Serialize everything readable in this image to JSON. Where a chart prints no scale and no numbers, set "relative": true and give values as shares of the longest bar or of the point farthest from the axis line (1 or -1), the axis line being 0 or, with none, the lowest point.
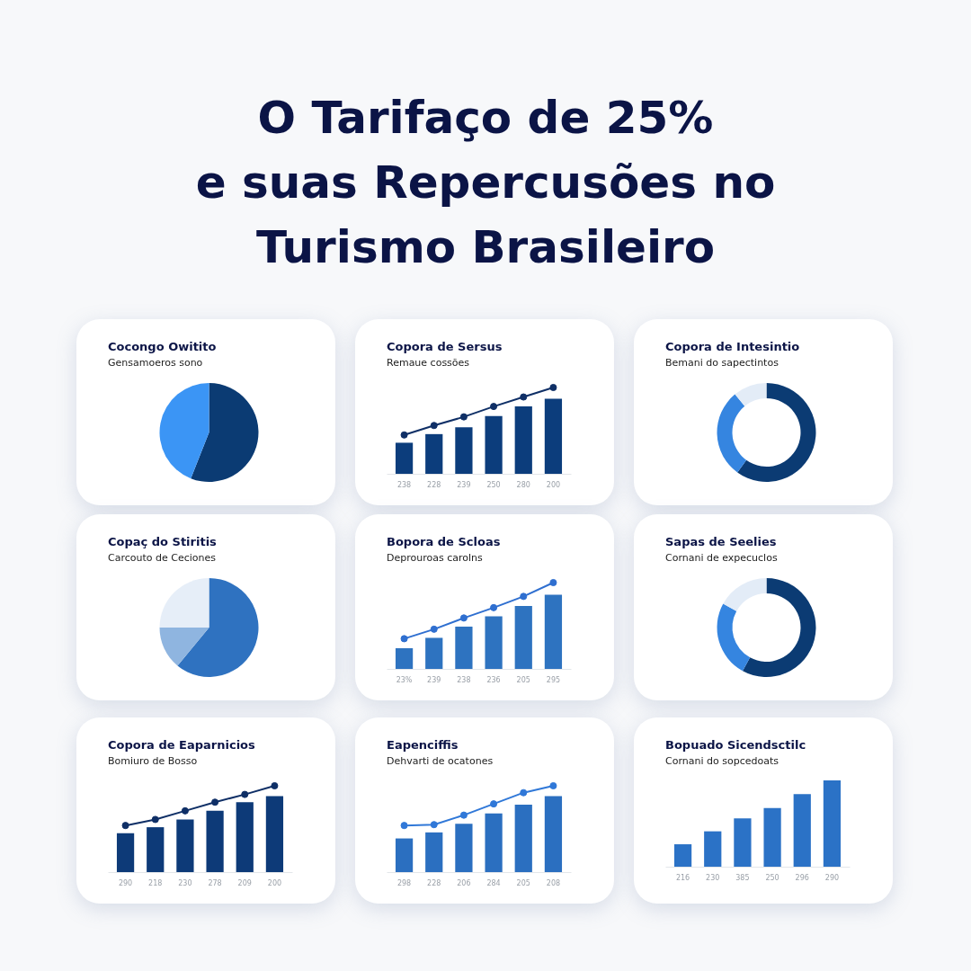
{
  "chart_data": [
    {
      "type": "other",
      "title": "O Tarifaço de 25%\ne suas Repercusões no\nTurismo Brasileiro"
    },
    {
      "type": "pie",
      "title": "Cocongo Owitito",
      "subtitle": "Gensamoeros sono",
      "categories": [
        null,
        null
      ],
      "values": [
        56,
        44
      ],
      "colors": [
        "#0b3b73",
        "#3b95f5"
      ]
    },
    {
      "type": "bar",
      "title": "Copora de Sersus",
      "subtitle": "Remaue cossões",
      "categories": [
        "238",
        "228",
        "239",
        "250",
        "280",
        "200"
      ],
      "relative": true,
      "marker": "circle",
      "series": [
        {
          "type": "bar",
          "color": "#0c3d7c",
          "values": [
            0.36,
            0.46,
            0.54,
            0.67,
            0.78,
            0.87
          ]
        },
        {
          "type": "line",
          "color": "#0f2f66",
          "values": [
            0.45,
            0.56,
            0.66,
            0.78,
            0.89,
            1
          ]
        }
      ]
    },
    {
      "type": "donut",
      "title": "Copora de Intesintio",
      "subtitle": "Bemani do sapectintos",
      "categories": [
        null,
        null,
        null
      ],
      "values": [
        60,
        29,
        11
      ],
      "colors": [
        "#0b3b73",
        "#3585e0",
        "#e3ecf7"
      ]
    },
    {
      "type": "pie",
      "title": "Copaç do Stiritis",
      "subtitle": "Carcouto de Ceciones",
      "categories": [
        null,
        null,
        null
      ],
      "values": [
        61,
        14,
        25
      ],
      "colors": [
        "#2f72c0",
        "#8fb5e0",
        "#e6eef8"
      ]
    },
    {
      "type": "bar",
      "title": "Bopora de Scloas",
      "subtitle": "Deprouroas carolns",
      "categories": [
        "23%",
        "239",
        "238",
        "236",
        "205",
        "295"
      ],
      "relative": true,
      "marker": "circle",
      "series": [
        {
          "type": "bar",
          "color": "#2e73c0",
          "values": [
            0.24,
            0.36,
            0.49,
            0.61,
            0.73,
            0.86
          ]
        },
        {
          "type": "line",
          "color": "#2f6fd0",
          "values": [
            0.35,
            0.46,
            0.59,
            0.71,
            0.84,
            1
          ]
        }
      ]
    },
    {
      "type": "donut",
      "title": "Sapas de Seelies",
      "subtitle": "Cornani de expecuclos",
      "categories": [
        null,
        null,
        null
      ],
      "values": [
        58,
        25,
        17
      ],
      "colors": [
        "#0b3b73",
        "#3585e0",
        "#e3ecf7"
      ]
    },
    {
      "type": "bar",
      "title": "Copora de Eaparnicios",
      "subtitle": "Bomiuro de Bosso",
      "categories": [
        "290",
        "218",
        "230",
        "278",
        "209",
        "200"
      ],
      "relative": true,
      "marker": "circle",
      "series": [
        {
          "type": "bar",
          "color": "#0d3a78",
          "values": [
            0.45,
            0.52,
            0.61,
            0.71,
            0.81,
            0.88
          ]
        },
        {
          "type": "line",
          "color": "#0f2f66",
          "values": [
            0.54,
            0.61,
            0.71,
            0.81,
            0.9,
            1
          ]
        }
      ]
    },
    {
      "type": "bar",
      "title": "Eapenciffis",
      "subtitle": "Dehvarti de ocatones",
      "categories": [
        "298",
        "228",
        "206",
        "284",
        "205",
        "208"
      ],
      "relative": true,
      "marker": "circle",
      "series": [
        {
          "type": "bar",
          "color": "#2b6fc0",
          "values": [
            0.39,
            0.46,
            0.56,
            0.68,
            0.78,
            0.88
          ]
        },
        {
          "type": "line",
          "color": "#3078d8",
          "values": [
            0.54,
            0.55,
            0.66,
            0.79,
            0.92,
            1
          ]
        }
      ]
    },
    {
      "type": "bar",
      "title": "Bopuado Sicendsctilc",
      "subtitle": "Cornani do sopcedoats",
      "categories": [
        "216",
        "230",
        "385",
        "250",
        "296",
        "290"
      ],
      "relative": true,
      "series": [
        {
          "type": "bar",
          "color": "#2b72c6",
          "values": [
            0.26,
            0.41,
            0.56,
            0.68,
            0.84,
            1
          ]
        }
      ]
    }
  ]
}
